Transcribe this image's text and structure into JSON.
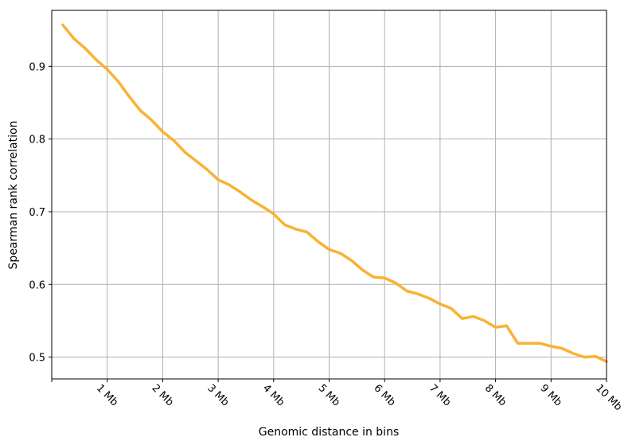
{
  "chart_data": {
    "type": "line",
    "title": "",
    "xlabel": "Genomic distance in bins",
    "ylabel": "Spearman rank correlation",
    "xlim": [
      0,
      50
    ],
    "ylim": [
      0.47,
      0.977
    ],
    "grid": true,
    "x_ticks": [
      {
        "value": 0,
        "label": ""
      },
      {
        "value": 5,
        "label": "1 Mb"
      },
      {
        "value": 10,
        "label": "2 Mb"
      },
      {
        "value": 15,
        "label": "3 Mb"
      },
      {
        "value": 20,
        "label": "4 Mb"
      },
      {
        "value": 25,
        "label": "5 Mb"
      },
      {
        "value": 30,
        "label": "6 Mb"
      },
      {
        "value": 35,
        "label": "7 Mb"
      },
      {
        "value": 40,
        "label": "8 Mb"
      },
      {
        "value": 45,
        "label": "9 Mb"
      },
      {
        "value": 50,
        "label": "10 Mb"
      }
    ],
    "y_ticks": [
      {
        "value": 0.5,
        "label": "0.5"
      },
      {
        "value": 0.6,
        "label": "0.6"
      },
      {
        "value": 0.7,
        "label": "0.7"
      },
      {
        "value": 0.8,
        "label": "0.8"
      },
      {
        "value": 0.9,
        "label": "0.9"
      }
    ],
    "series": [
      {
        "color": "#f9b233",
        "x": [
          1,
          2,
          3,
          4,
          5,
          6,
          7,
          8,
          9,
          10,
          11,
          12,
          13,
          14,
          15,
          16,
          17,
          18,
          19,
          20,
          21,
          22,
          23,
          24,
          25,
          26,
          27,
          28,
          29,
          30,
          31,
          32,
          33,
          34,
          35,
          36,
          37,
          38,
          39,
          40,
          41,
          42,
          43,
          44,
          45,
          46,
          47,
          48,
          49,
          50
        ],
        "values": [
          0.957,
          0.938,
          0.925,
          0.909,
          0.896,
          0.879,
          0.858,
          0.839,
          0.826,
          0.81,
          0.798,
          0.782,
          0.77,
          0.758,
          0.744,
          0.737,
          0.727,
          0.716,
          0.707,
          0.697,
          0.682,
          0.676,
          0.672,
          0.659,
          0.648,
          0.643,
          0.633,
          0.62,
          0.61,
          0.609,
          0.602,
          0.591,
          0.587,
          0.581,
          0.573,
          0.567,
          0.553,
          0.556,
          0.55,
          0.541,
          0.543,
          0.519,
          0.519,
          0.519,
          0.515,
          0.512,
          0.505,
          0.5,
          0.501,
          0.494
        ]
      }
    ]
  }
}
